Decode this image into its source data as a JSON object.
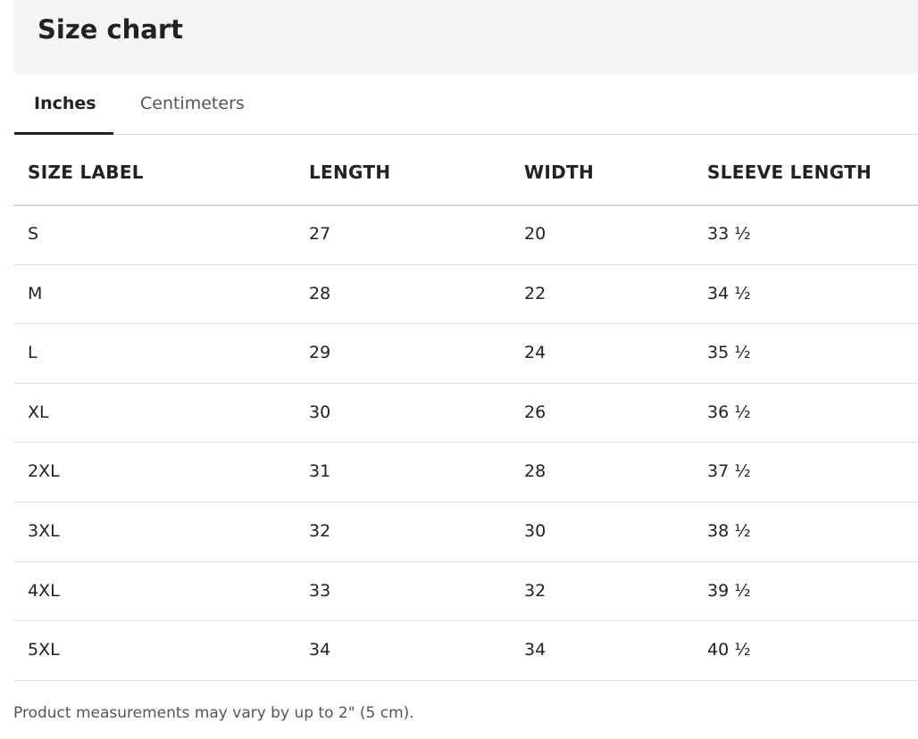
{
  "header": {
    "title": "Size chart"
  },
  "tabs": [
    "Inches",
    "Centimeters"
  ],
  "table": {
    "columns": [
      "SIZE LABEL",
      "LENGTH",
      "WIDTH",
      "SLEEVE LENGTH"
    ],
    "rows": [
      [
        "S",
        "27",
        "20",
        "33 ½"
      ],
      [
        "M",
        "28",
        "22",
        "34 ½"
      ],
      [
        "L",
        "29",
        "24",
        "35 ½"
      ],
      [
        "XL",
        "30",
        "26",
        "36 ½"
      ],
      [
        "2XL",
        "31",
        "28",
        "37 ½"
      ],
      [
        "3XL",
        "32",
        "30",
        "38 ½"
      ],
      [
        "4XL",
        "33",
        "32",
        "39 ½"
      ],
      [
        "5XL",
        "34",
        "34",
        "40 ½"
      ]
    ]
  },
  "footnote": "Product measurements may vary by up to 2\" (5 cm)."
}
